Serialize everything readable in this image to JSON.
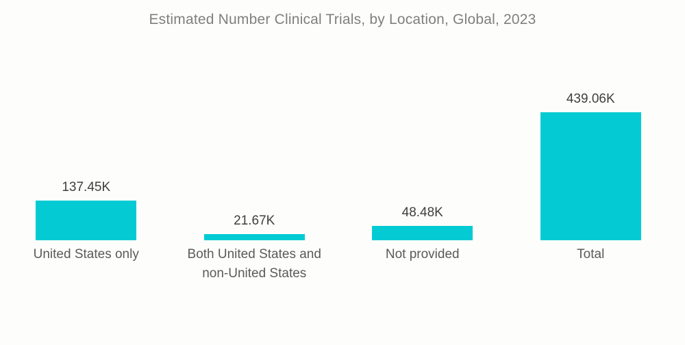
{
  "chart_data": {
    "type": "bar",
    "title": "Estimated Number Clinical Trials, by Location, Global, 2023",
    "categories": [
      "United States only",
      "Both United States and non-United States",
      "Not provided",
      "Total"
    ],
    "values": [
      137.45,
      21.67,
      48.48,
      439.06
    ],
    "value_labels": [
      "137.45K",
      "21.67K",
      "48.48K",
      "439.06K"
    ],
    "unit": "K (thousands)",
    "xlabel": "",
    "ylabel": "",
    "ylim": [
      0,
      439.06
    ],
    "grid": false,
    "legend": "none",
    "bar_color": "#04CBD3"
  },
  "colors": {
    "background": "#FDFDFB",
    "bar": "#04CBD3",
    "title_text": "#7F7F7F",
    "value_text": "#3E3E3E",
    "category_text": "#5A5A5A"
  }
}
